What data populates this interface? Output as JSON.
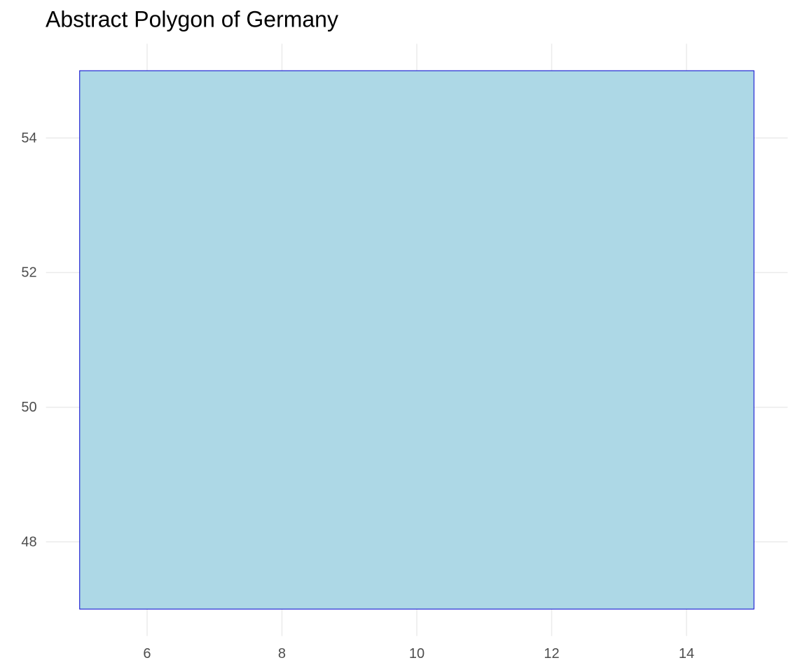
{
  "chart_data": {
    "type": "polygon",
    "title": "Abstract Polygon of Germany",
    "x": [
      5,
      15,
      15,
      5
    ],
    "y": [
      47,
      47,
      55,
      55
    ],
    "fill": "#add8e6",
    "color": "#0000cd",
    "xlim": [
      4.5,
      15.5
    ],
    "xticks": [
      6,
      8,
      10,
      12,
      14
    ],
    "ylim": [
      46.6,
      55.4
    ],
    "yticks": [
      48,
      50,
      52,
      54
    ],
    "grid": true
  }
}
